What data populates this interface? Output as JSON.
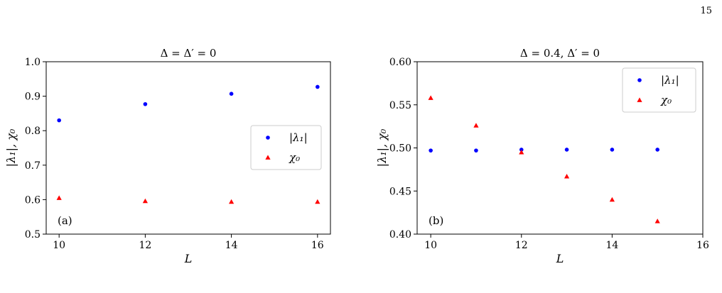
{
  "page": {
    "number": "15"
  },
  "chart_data": [
    {
      "type": "scatter",
      "title": "Δ = Δ′ = 0",
      "xlabel": "L",
      "ylabel": "|λ₁|, χ₀",
      "panel_label": "(a)",
      "xlim": [
        9.7,
        16.3
      ],
      "ylim": [
        0.5,
        1.0
      ],
      "xticks": [
        10,
        12,
        14,
        16
      ],
      "yticks": [
        0.5,
        0.6,
        0.7,
        0.8,
        0.9,
        1.0
      ],
      "ytick_labels": [
        "0.5",
        "0.6",
        "0.7",
        "0.8",
        "0.9",
        "1.0"
      ],
      "legend_position": "center-right",
      "series": [
        {
          "name": "|λ₁|",
          "marker": "circle",
          "color": "#0000ff",
          "x": [
            10,
            12,
            14,
            16
          ],
          "y": [
            0.83,
            0.877,
            0.907,
            0.927
          ]
        },
        {
          "name": "χ₀",
          "marker": "triangle",
          "color": "#ff0000",
          "x": [
            10,
            12,
            14,
            16
          ],
          "y": [
            0.605,
            0.596,
            0.594,
            0.594
          ]
        }
      ]
    },
    {
      "type": "scatter",
      "title": "Δ = 0.4, Δ′ = 0",
      "xlabel": "L",
      "ylabel": "|λ₁|, χ₀",
      "panel_label": "(b)",
      "xlim": [
        9.7,
        16.0
      ],
      "ylim": [
        0.4,
        0.6
      ],
      "xticks": [
        10,
        12,
        14,
        16
      ],
      "yticks": [
        0.4,
        0.45,
        0.5,
        0.55,
        0.6
      ],
      "ytick_labels": [
        "0.40",
        "0.45",
        "0.50",
        "0.55",
        "0.60"
      ],
      "legend_position": "upper-right",
      "series": [
        {
          "name": "|λ₁|",
          "marker": "circle",
          "color": "#0000ff",
          "x": [
            10,
            11,
            12,
            13,
            14,
            15
          ],
          "y": [
            0.497,
            0.497,
            0.498,
            0.498,
            0.498,
            0.498
          ]
        },
        {
          "name": "χ₀",
          "marker": "triangle",
          "color": "#ff0000",
          "x": [
            10,
            11,
            12,
            13,
            14,
            15
          ],
          "y": [
            0.558,
            0.526,
            0.495,
            0.467,
            0.44,
            0.415
          ]
        }
      ]
    }
  ]
}
